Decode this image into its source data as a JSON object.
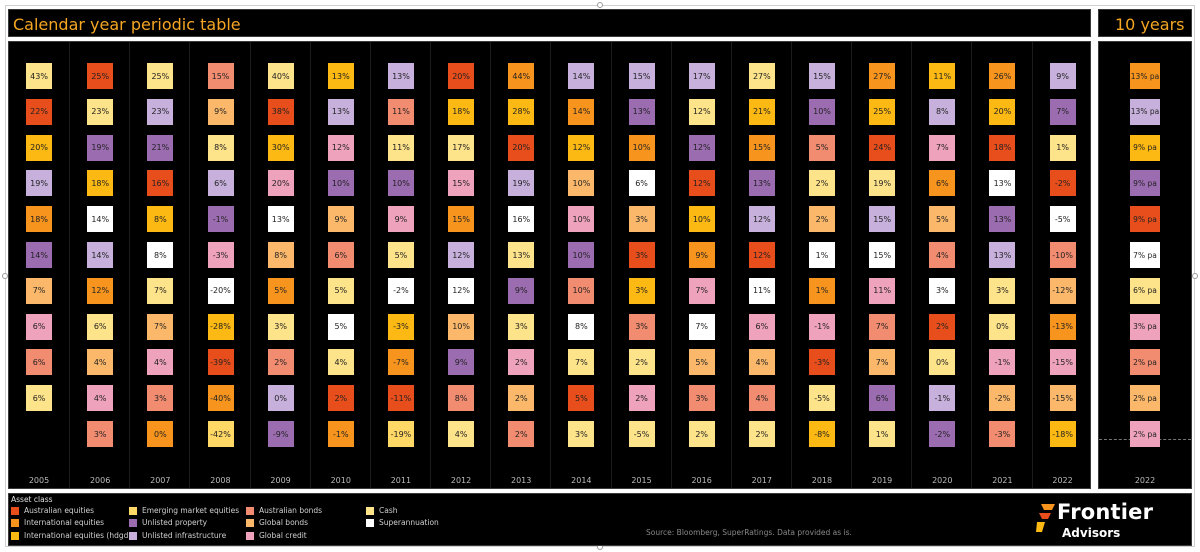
{
  "header": {
    "title": "Calendar year periodic table",
    "right_title": "10 years"
  },
  "legend": {
    "title": "Asset class",
    "items": [
      {
        "key": "aus_eq",
        "label": "Australian equities",
        "color": "#e84e1b"
      },
      {
        "key": "intl_eq",
        "label": "International equities",
        "color": "#f7941d"
      },
      {
        "key": "intl_hdg",
        "label": "International equities (hdgd)",
        "color": "#fdb913"
      },
      {
        "key": "em_eq",
        "label": "Emerging market equities",
        "color": "#ffd866"
      },
      {
        "key": "unl_prop",
        "label": "Unlisted property",
        "color": "#9c6cb0"
      },
      {
        "key": "unl_inf",
        "label": "Unlisted infrastructure",
        "color": "#c7b1dc"
      },
      {
        "key": "aus_bond",
        "label": "Australian bonds",
        "color": "#f28c70"
      },
      {
        "key": "gl_bond",
        "label": "Global bonds",
        "color": "#fbb86a"
      },
      {
        "key": "gl_cred",
        "label": "Global credit",
        "color": "#efa2bb"
      },
      {
        "key": "cash",
        "label": "Cash",
        "color": "#fde38a"
      },
      {
        "key": "super",
        "label": "Superannuation",
        "color": "#ffffff"
      }
    ]
  },
  "colors": {
    "A": "#e84e1b",
    "I": "#f7941d",
    "H": "#fdb913",
    "E": "#ffd866",
    "P": "#9c6cb0",
    "F": "#c7b1dc",
    "B": "#f28c70",
    "G": "#fbb86a",
    "C": "#efa2bb",
    "K": "#fde38a",
    "S": "#ffffff"
  },
  "chart_data": {
    "type": "table",
    "years": [
      {
        "year": "2005",
        "cells": [
          [
            "43%",
            "K"
          ],
          [
            "22%",
            "A"
          ],
          [
            "20%",
            "H"
          ],
          [
            "19%",
            "F"
          ],
          [
            "18%",
            "I"
          ],
          [
            "14%",
            "P"
          ],
          [
            "7%",
            "G"
          ],
          [
            "6%",
            "C"
          ],
          [
            "6%",
            "B"
          ],
          [
            "6%",
            "K"
          ]
        ]
      },
      {
        "year": "2006",
        "cells": [
          [
            "25%",
            "A"
          ],
          [
            "23%",
            "K"
          ],
          [
            "19%",
            "P"
          ],
          [
            "18%",
            "H"
          ],
          [
            "14%",
            "S"
          ],
          [
            "14%",
            "F"
          ],
          [
            "12%",
            "I"
          ],
          [
            "6%",
            "K"
          ],
          [
            "4%",
            "G"
          ],
          [
            "4%",
            "C"
          ],
          [
            "3%",
            "B"
          ]
        ]
      },
      {
        "year": "2007",
        "cells": [
          [
            "25%",
            "K"
          ],
          [
            "23%",
            "F"
          ],
          [
            "21%",
            "P"
          ],
          [
            "16%",
            "A"
          ],
          [
            "8%",
            "H"
          ],
          [
            "8%",
            "S"
          ],
          [
            "7%",
            "K"
          ],
          [
            "7%",
            "G"
          ],
          [
            "4%",
            "C"
          ],
          [
            "3%",
            "B"
          ],
          [
            "0%",
            "I"
          ]
        ]
      },
      {
        "year": "2008",
        "cells": [
          [
            "15%",
            "B"
          ],
          [
            "9%",
            "G"
          ],
          [
            "8%",
            "K"
          ],
          [
            "6%",
            "F"
          ],
          [
            "-1%",
            "P"
          ],
          [
            "-3%",
            "C"
          ],
          [
            "-20%",
            "S"
          ],
          [
            "-28%",
            "H"
          ],
          [
            "-39%",
            "A"
          ],
          [
            "-40%",
            "I"
          ],
          [
            "-42%",
            "E"
          ]
        ]
      },
      {
        "year": "2009",
        "cells": [
          [
            "40%",
            "K"
          ],
          [
            "38%",
            "A"
          ],
          [
            "30%",
            "H"
          ],
          [
            "20%",
            "C"
          ],
          [
            "13%",
            "S"
          ],
          [
            "8%",
            "G"
          ],
          [
            "5%",
            "I"
          ],
          [
            "3%",
            "K"
          ],
          [
            "2%",
            "B"
          ],
          [
            "0%",
            "F"
          ],
          [
            "-9%",
            "P"
          ]
        ]
      },
      {
        "year": "2010",
        "cells": [
          [
            "13%",
            "H"
          ],
          [
            "13%",
            "F"
          ],
          [
            "12%",
            "C"
          ],
          [
            "10%",
            "P"
          ],
          [
            "9%",
            "G"
          ],
          [
            "6%",
            "B"
          ],
          [
            "5%",
            "K"
          ],
          [
            "5%",
            "S"
          ],
          [
            "4%",
            "K"
          ],
          [
            "2%",
            "A"
          ],
          [
            "-1%",
            "I"
          ]
        ]
      },
      {
        "year": "2011",
        "cells": [
          [
            "13%",
            "F"
          ],
          [
            "11%",
            "B"
          ],
          [
            "11%",
            "K"
          ],
          [
            "10%",
            "P"
          ],
          [
            "9%",
            "C"
          ],
          [
            "5%",
            "K"
          ],
          [
            "-2%",
            "S"
          ],
          [
            "-3%",
            "H"
          ],
          [
            "-7%",
            "I"
          ],
          [
            "-11%",
            "A"
          ],
          [
            "-19%",
            "E"
          ]
        ]
      },
      {
        "year": "2012",
        "cells": [
          [
            "20%",
            "A"
          ],
          [
            "18%",
            "H"
          ],
          [
            "17%",
            "K"
          ],
          [
            "15%",
            "C"
          ],
          [
            "15%",
            "I"
          ],
          [
            "12%",
            "F"
          ],
          [
            "12%",
            "S"
          ],
          [
            "10%",
            "G"
          ],
          [
            "9%",
            "P"
          ],
          [
            "8%",
            "B"
          ],
          [
            "4%",
            "K"
          ]
        ]
      },
      {
        "year": "2013",
        "cells": [
          [
            "44%",
            "I"
          ],
          [
            "28%",
            "H"
          ],
          [
            "20%",
            "A"
          ],
          [
            "19%",
            "F"
          ],
          [
            "16%",
            "S"
          ],
          [
            "13%",
            "K"
          ],
          [
            "9%",
            "P"
          ],
          [
            "3%",
            "K"
          ],
          [
            "2%",
            "C"
          ],
          [
            "2%",
            "G"
          ],
          [
            "2%",
            "B"
          ]
        ]
      },
      {
        "year": "2014",
        "cells": [
          [
            "14%",
            "F"
          ],
          [
            "14%",
            "I"
          ],
          [
            "12%",
            "H"
          ],
          [
            "10%",
            "G"
          ],
          [
            "10%",
            "C"
          ],
          [
            "10%",
            "P"
          ],
          [
            "10%",
            "B"
          ],
          [
            "8%",
            "S"
          ],
          [
            "7%",
            "K"
          ],
          [
            "5%",
            "A"
          ],
          [
            "3%",
            "K"
          ]
        ]
      },
      {
        "year": "2015",
        "cells": [
          [
            "15%",
            "F"
          ],
          [
            "13%",
            "P"
          ],
          [
            "10%",
            "I"
          ],
          [
            "6%",
            "S"
          ],
          [
            "3%",
            "G"
          ],
          [
            "3%",
            "A"
          ],
          [
            "3%",
            "H"
          ],
          [
            "3%",
            "B"
          ],
          [
            "2%",
            "K"
          ],
          [
            "2%",
            "C"
          ],
          [
            "-5%",
            "K"
          ]
        ]
      },
      {
        "year": "2016",
        "cells": [
          [
            "17%",
            "F"
          ],
          [
            "12%",
            "K"
          ],
          [
            "12%",
            "P"
          ],
          [
            "12%",
            "A"
          ],
          [
            "10%",
            "H"
          ],
          [
            "9%",
            "I"
          ],
          [
            "7%",
            "C"
          ],
          [
            "7%",
            "S"
          ],
          [
            "5%",
            "G"
          ],
          [
            "3%",
            "B"
          ],
          [
            "2%",
            "K"
          ]
        ]
      },
      {
        "year": "2017",
        "cells": [
          [
            "27%",
            "K"
          ],
          [
            "21%",
            "H"
          ],
          [
            "15%",
            "I"
          ],
          [
            "13%",
            "P"
          ],
          [
            "12%",
            "F"
          ],
          [
            "12%",
            "A"
          ],
          [
            "11%",
            "S"
          ],
          [
            "6%",
            "C"
          ],
          [
            "4%",
            "G"
          ],
          [
            "4%",
            "B"
          ],
          [
            "2%",
            "K"
          ]
        ]
      },
      {
        "year": "2018",
        "cells": [
          [
            "15%",
            "F"
          ],
          [
            "10%",
            "P"
          ],
          [
            "5%",
            "B"
          ],
          [
            "2%",
            "K"
          ],
          [
            "2%",
            "G"
          ],
          [
            "1%",
            "S"
          ],
          [
            "1%",
            "I"
          ],
          [
            "-1%",
            "C"
          ],
          [
            "-3%",
            "A"
          ],
          [
            "-5%",
            "K"
          ],
          [
            "-8%",
            "H"
          ]
        ]
      },
      {
        "year": "2019",
        "cells": [
          [
            "27%",
            "I"
          ],
          [
            "25%",
            "H"
          ],
          [
            "24%",
            "A"
          ],
          [
            "19%",
            "K"
          ],
          [
            "15%",
            "F"
          ],
          [
            "15%",
            "S"
          ],
          [
            "11%",
            "C"
          ],
          [
            "7%",
            "B"
          ],
          [
            "7%",
            "G"
          ],
          [
            "6%",
            "P"
          ],
          [
            "1%",
            "K"
          ]
        ]
      },
      {
        "year": "2020",
        "cells": [
          [
            "11%",
            "H"
          ],
          [
            "8%",
            "F"
          ],
          [
            "7%",
            "C"
          ],
          [
            "6%",
            "I"
          ],
          [
            "5%",
            "G"
          ],
          [
            "4%",
            "B"
          ],
          [
            "3%",
            "S"
          ],
          [
            "2%",
            "A"
          ],
          [
            "0%",
            "K"
          ],
          [
            "-1%",
            "F"
          ],
          [
            "-2%",
            "P"
          ]
        ]
      },
      {
        "year": "2021",
        "cells": [
          [
            "26%",
            "I"
          ],
          [
            "20%",
            "H"
          ],
          [
            "18%",
            "A"
          ],
          [
            "13%",
            "S"
          ],
          [
            "13%",
            "P"
          ],
          [
            "13%",
            "F"
          ],
          [
            "3%",
            "K"
          ],
          [
            "0%",
            "K"
          ],
          [
            "-1%",
            "C"
          ],
          [
            "-2%",
            "G"
          ],
          [
            "-3%",
            "B"
          ]
        ]
      },
      {
        "year": "2022",
        "cells": [
          [
            "9%",
            "F"
          ],
          [
            "7%",
            "P"
          ],
          [
            "1%",
            "K"
          ],
          [
            "-2%",
            "A"
          ],
          [
            "-5%",
            "S"
          ],
          [
            "-10%",
            "B"
          ],
          [
            "-12%",
            "G"
          ],
          [
            "-13%",
            "I"
          ],
          [
            "-15%",
            "C"
          ],
          [
            "-15%",
            "G"
          ],
          [
            "-18%",
            "H"
          ]
        ]
      }
    ],
    "ten_year": {
      "year": "2022",
      "cells": [
        [
          "13% pa",
          "I"
        ],
        [
          "13% pa",
          "F"
        ],
        [
          "9% pa",
          "H"
        ],
        [
          "9% pa",
          "P"
        ],
        [
          "9% pa",
          "A"
        ],
        [
          "7% pa",
          "S"
        ],
        [
          "6% pa",
          "K"
        ],
        [
          "3% pa",
          "C"
        ],
        [
          "2% pa",
          "B"
        ],
        [
          "2% pa",
          "G"
        ],
        [
          "2% pa",
          "C"
        ]
      ]
    }
  },
  "footer": {
    "source": "Source: Bloomberg, SuperRatings. Data provided as is.",
    "logo_brand": "Frontier",
    "logo_sub": "Advisors"
  }
}
